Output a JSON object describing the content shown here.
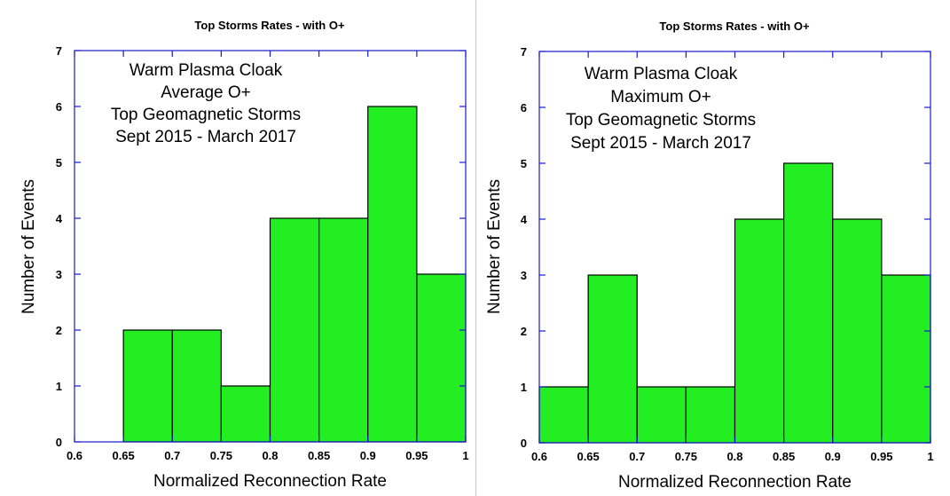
{
  "chart_data": [
    {
      "type": "bar",
      "title": "Top Storms Rates - with O+",
      "xlabel": "Normalized Reconnection Rate",
      "ylabel": "Number of Events",
      "annotation": [
        "Warm Plasma Cloak",
        "Average O+",
        "Top Geomagnetic Storms",
        "Sept 2015 - March 2017"
      ],
      "xlim": [
        0.6,
        1.0
      ],
      "ylim": [
        0,
        7
      ],
      "xticks": [
        "0.6",
        "0.65",
        "0.7",
        "0.75",
        "0.8",
        "0.85",
        "0.9",
        "0.95",
        "1"
      ],
      "yticks": [
        "0",
        "1",
        "2",
        "3",
        "4",
        "5",
        "6",
        "7"
      ],
      "bins": [
        {
          "x0": 0.6,
          "x1": 0.65,
          "value": 0
        },
        {
          "x0": 0.65,
          "x1": 0.7,
          "value": 2
        },
        {
          "x0": 0.7,
          "x1": 0.75,
          "value": 2
        },
        {
          "x0": 0.75,
          "x1": 0.8,
          "value": 1
        },
        {
          "x0": 0.8,
          "x1": 0.85,
          "value": 4
        },
        {
          "x0": 0.85,
          "x1": 0.9,
          "value": 4
        },
        {
          "x0": 0.9,
          "x1": 0.95,
          "value": 6
        },
        {
          "x0": 0.95,
          "x1": 1.0,
          "value": 3
        }
      ],
      "bar_color": "#22ee22",
      "axis_color": "#1a1acc"
    },
    {
      "type": "bar",
      "title": "Top Storms Rates - with O+",
      "xlabel": "Normalized Reconnection Rate",
      "ylabel": "Number of Events",
      "annotation": [
        "Warm Plasma Cloak",
        "Maximum O+",
        "Top Geomagnetic Storms",
        "Sept 2015 - March 2017"
      ],
      "xlim": [
        0.6,
        1.0
      ],
      "ylim": [
        0,
        7
      ],
      "xticks": [
        "0.6",
        "0.65",
        "0.7",
        "0.75",
        "0.8",
        "0.85",
        "0.9",
        "0.95",
        "1"
      ],
      "yticks": [
        "0",
        "1",
        "2",
        "3",
        "4",
        "5",
        "6",
        "7"
      ],
      "bins": [
        {
          "x0": 0.6,
          "x1": 0.65,
          "value": 1
        },
        {
          "x0": 0.65,
          "x1": 0.7,
          "value": 3
        },
        {
          "x0": 0.7,
          "x1": 0.75,
          "value": 1
        },
        {
          "x0": 0.75,
          "x1": 0.8,
          "value": 1
        },
        {
          "x0": 0.8,
          "x1": 0.85,
          "value": 4
        },
        {
          "x0": 0.85,
          "x1": 0.9,
          "value": 5
        },
        {
          "x0": 0.9,
          "x1": 0.95,
          "value": 4
        },
        {
          "x0": 0.95,
          "x1": 1.0,
          "value": 3
        }
      ],
      "bar_color": "#22ee22",
      "axis_color": "#1a1acc"
    }
  ]
}
